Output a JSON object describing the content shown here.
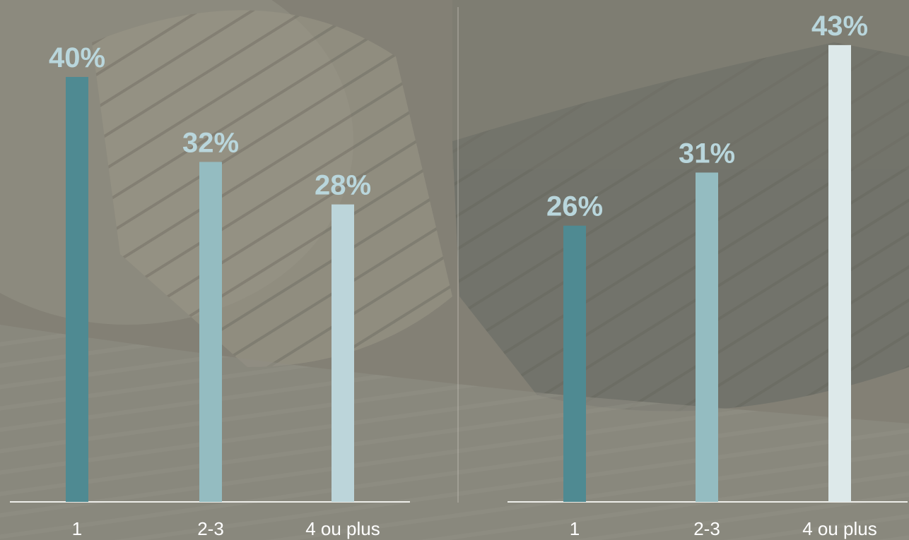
{
  "colors": {
    "bar_dark": "#4f8a92",
    "bar_mid": "#94bcc1",
    "bar_light": "#bcd5da",
    "bar_lightest": "#dde9ea",
    "value_label": "#b9d6dc",
    "axis": "#eeeeea"
  },
  "chart_data": [
    {
      "type": "bar",
      "categories": [
        "1",
        "2-3",
        "4 ou plus"
      ],
      "values": [
        40,
        32,
        28
      ],
      "value_labels": [
        "40%",
        "32%",
        "28%"
      ],
      "ylim": [
        0,
        45
      ],
      "grid": false
    },
    {
      "type": "bar",
      "categories": [
        "1",
        "2-3",
        "4 ou plus"
      ],
      "values": [
        26,
        31,
        43
      ],
      "value_labels": [
        "26%",
        "31%",
        "43%"
      ],
      "ylim": [
        0,
        45
      ],
      "grid": false
    }
  ]
}
